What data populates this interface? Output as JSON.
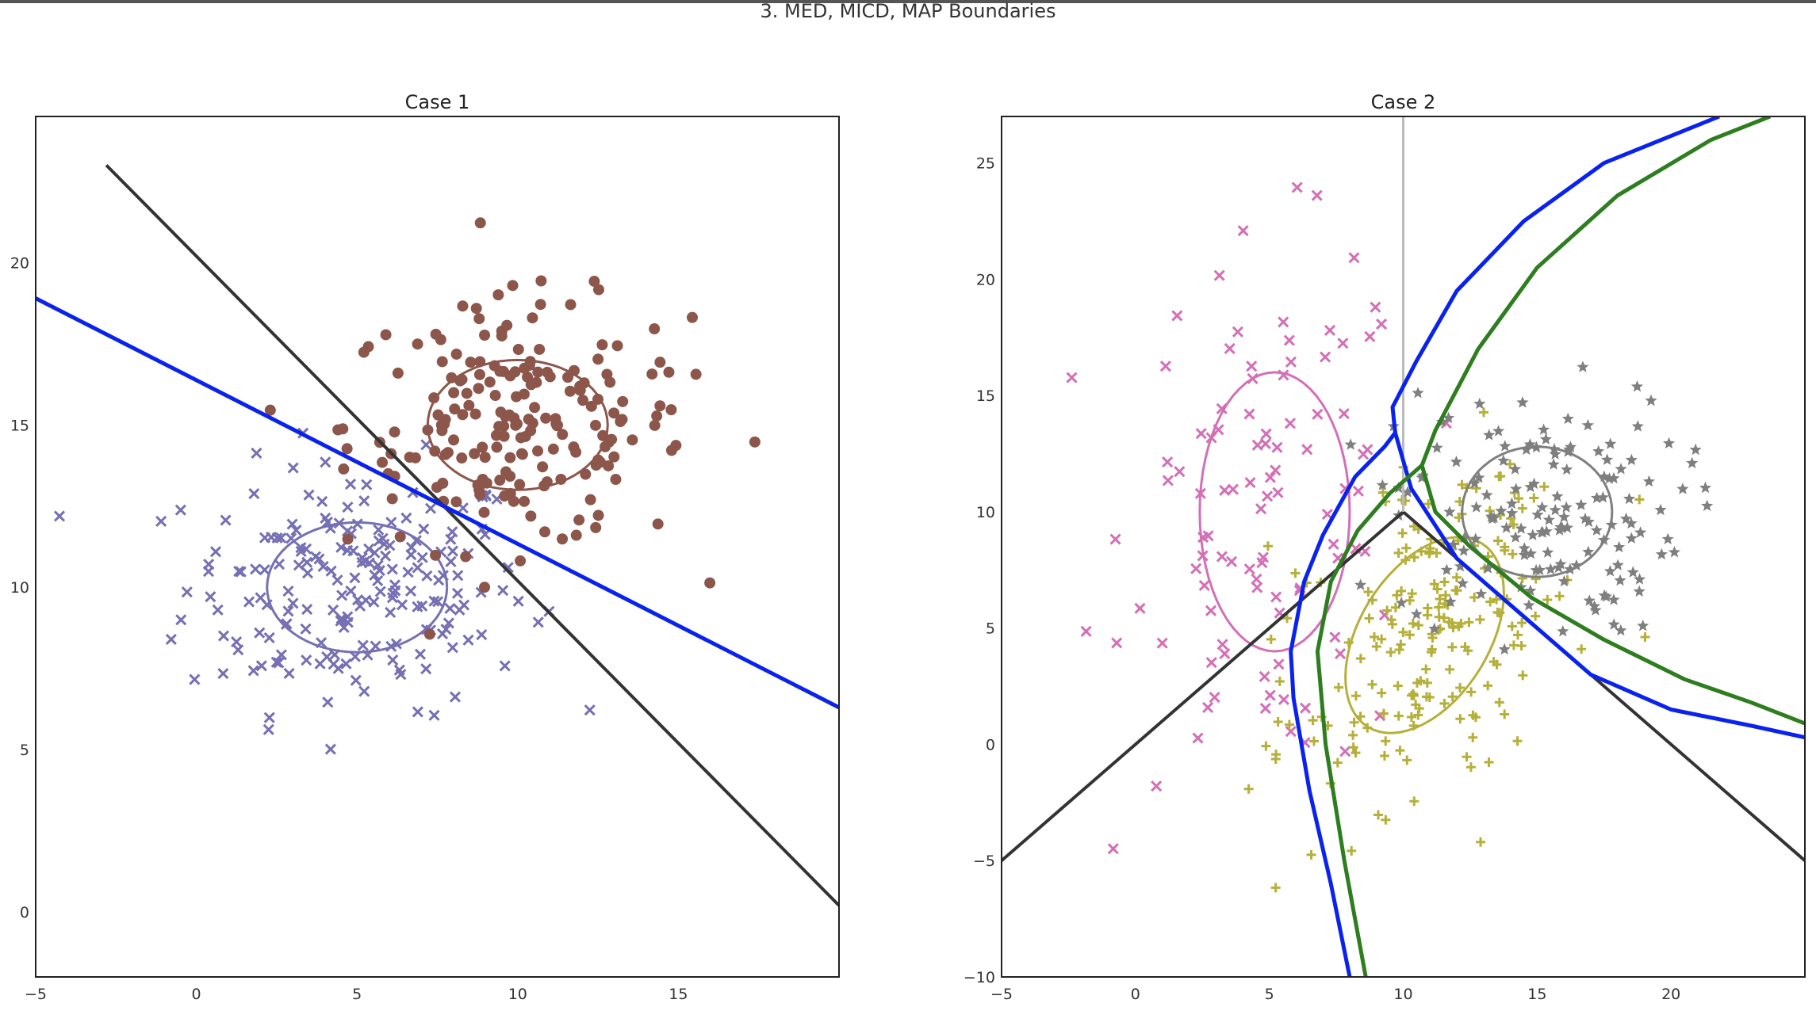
{
  "suptitle": "3. MED, MICD, MAP Boundaries",
  "chart_data": [
    {
      "type": "scatter",
      "title": "Case 1",
      "xlim": [
        -5,
        20
      ],
      "ylim": [
        -2,
        24.5
      ],
      "xticks": [
        -5,
        0,
        5,
        10,
        15
      ],
      "yticks": [
        0,
        5,
        10,
        15,
        20
      ],
      "grid": false,
      "legend": "none",
      "classes": [
        {
          "marker": "x",
          "color": "#7570b3",
          "mean": [
            5,
            10
          ],
          "ellipse": {
            "cx": 5,
            "cy": 10,
            "rx": 2.8,
            "ry": 2.0
          },
          "n": 200
        },
        {
          "marker": "circle",
          "color": "#8c564b",
          "mean": [
            10,
            15
          ],
          "ellipse": {
            "cx": 10,
            "cy": 15,
            "rx": 2.8,
            "ry": 2.0
          },
          "n": 200
        }
      ],
      "boundaries": [
        {
          "label": "MED",
          "color": "#333333",
          "points": [
            [
              -2.8,
              23.0
            ],
            [
              20.0,
              0.2
            ]
          ]
        },
        {
          "label": "MICD/MAP",
          "color": "#0a22ee",
          "points": [
            [
              -5.0,
              18.9
            ],
            [
              20.0,
              6.3
            ]
          ]
        }
      ]
    },
    {
      "type": "scatter",
      "title": "Case 2",
      "xlim": [
        -5,
        25
      ],
      "ylim": [
        -10,
        27
      ],
      "xticks": [
        -5,
        0,
        5,
        10,
        15,
        20
      ],
      "yticks": [
        -10,
        -5,
        0,
        5,
        10,
        15,
        20,
        25
      ],
      "grid": false,
      "legend": "none",
      "classes": [
        {
          "marker": "x",
          "color": "#d36fb6",
          "mean": [
            5,
            10
          ],
          "ellipse": {
            "cx": 5.2,
            "cy": 10,
            "rx": 2.8,
            "ry": 6.0,
            "angle": 0
          },
          "n": 100
        },
        {
          "marker": "plus",
          "color": "#b5b03a",
          "mean": [
            10,
            5
          ],
          "ellipse": {
            "cx": 10.8,
            "cy": 4.7,
            "rx": 2.5,
            "ry": 4.5,
            "angle": -25
          },
          "n": 200
        },
        {
          "marker": "star",
          "color": "#7f7f7f",
          "mean": [
            15,
            10
          ],
          "ellipse": {
            "cx": 15,
            "cy": 10,
            "rx": 2.8,
            "ry": 2.8,
            "angle": 0
          },
          "n": 150
        }
      ],
      "boundaries": [
        {
          "label": "MED",
          "color": "#333333",
          "points": [
            [
              -5,
              -5
            ],
            [
              10,
              10
            ],
            [
              25,
              -5
            ]
          ]
        },
        {
          "label": "MED-vertical",
          "color": "#bbbbbb",
          "points": [
            [
              10,
              10
            ],
            [
              10,
              27
            ]
          ]
        },
        {
          "label": "MICD",
          "color": "#0a22ee",
          "points": [
            [
              8.0,
              -10
            ],
            [
              7.3,
              -6
            ],
            [
              6.5,
              -2
            ],
            [
              5.9,
              2
            ],
            [
              5.8,
              4
            ],
            [
              6.3,
              7
            ],
            [
              7.0,
              9
            ],
            [
              8.2,
              11.5
            ],
            [
              9.3,
              12.8
            ],
            [
              9.7,
              13.4
            ],
            [
              9.6,
              14.5
            ],
            [
              10.5,
              16.5
            ],
            [
              12.0,
              19.5
            ],
            [
              14.5,
              22.5
            ],
            [
              17.5,
              25.0
            ],
            [
              21.8,
              27
            ]
          ]
        },
        {
          "label": "MICD-lower",
          "color": "#0a22ee",
          "points": [
            [
              9.7,
              13.4
            ],
            [
              10.3,
              11.0
            ],
            [
              12.0,
              8.0
            ],
            [
              14.5,
              5.5
            ],
            [
              17.0,
              3.0
            ],
            [
              20.0,
              1.5
            ],
            [
              23.0,
              0.8
            ],
            [
              25.0,
              0.3
            ]
          ]
        },
        {
          "label": "MAP",
          "color": "#2e7d1f",
          "points": [
            [
              8.6,
              -10
            ],
            [
              7.8,
              -5
            ],
            [
              7.1,
              0
            ],
            [
              6.8,
              4
            ],
            [
              7.3,
              7
            ],
            [
              8.3,
              9.2
            ],
            [
              9.5,
              10.8
            ],
            [
              10.7,
              12.0
            ],
            [
              11.2,
              13.5
            ],
            [
              12.8,
              17
            ],
            [
              15.0,
              20.5
            ],
            [
              18.0,
              23.6
            ],
            [
              21.5,
              26
            ],
            [
              23.7,
              27
            ]
          ]
        },
        {
          "label": "MAP-lower",
          "color": "#2e7d1f",
          "points": [
            [
              10.7,
              12.0
            ],
            [
              11.2,
              10.0
            ],
            [
              12.5,
              8.5
            ],
            [
              14.8,
              6.3
            ],
            [
              17.5,
              4.5
            ],
            [
              20.5,
              2.8
            ],
            [
              23.0,
              1.8
            ],
            [
              25.0,
              0.9
            ]
          ]
        }
      ]
    }
  ]
}
